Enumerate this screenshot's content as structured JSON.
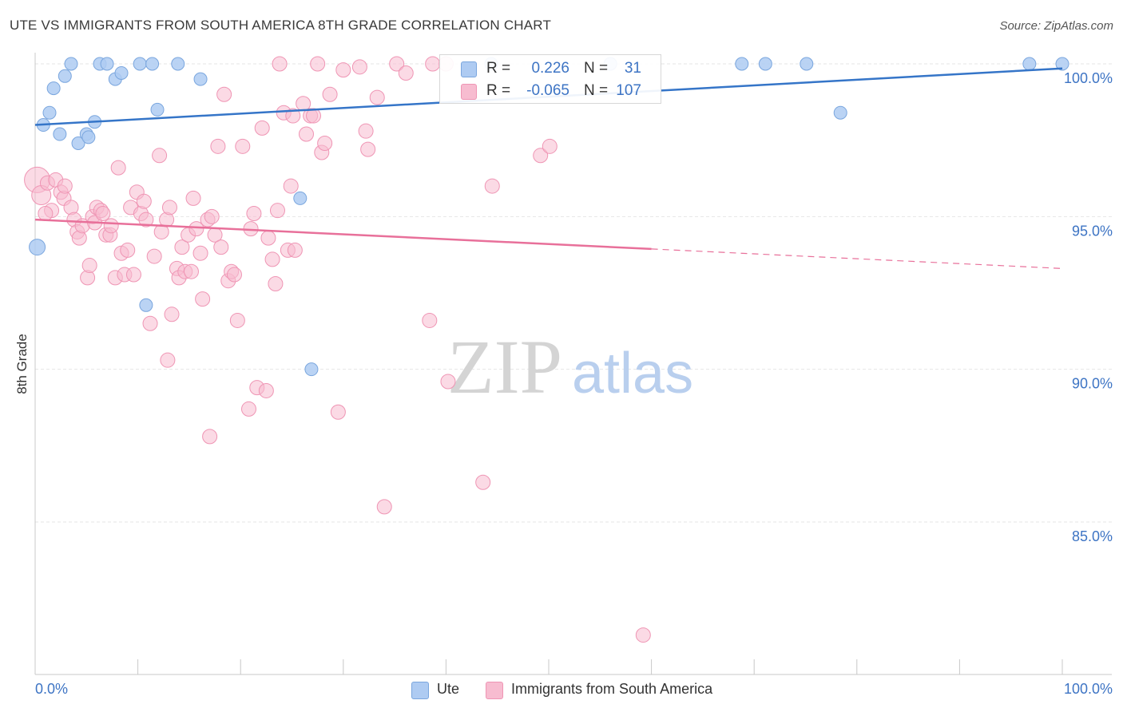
{
  "header": {
    "title": "UTE VS IMMIGRANTS FROM SOUTH AMERICA 8TH GRADE CORRELATION CHART",
    "source": "Source: ZipAtlas.com"
  },
  "watermark": {
    "zip": "ZIP",
    "atlas": "atlas"
  },
  "legend_box": {
    "rows": [
      {
        "r_label": "R =",
        "r_value": "0.226",
        "n_label": "N =",
        "n_value": "31"
      },
      {
        "r_label": "R =",
        "r_value": "-0.065",
        "n_label": "N =",
        "n_value": "107"
      }
    ]
  },
  "bottom_legend": {
    "items": [
      {
        "label": "Ute"
      },
      {
        "label": "Immigrants from South America"
      }
    ]
  },
  "colors": {
    "ute_fill": "#aecbf2",
    "ute_stroke": "#7aa6de",
    "ute_line": "#3575c8",
    "imm_fill": "#f7bcd0",
    "imm_stroke": "#ef95b4",
    "imm_line": "#e8709a",
    "axis_label_blue": "#3d74c4",
    "grid": "#e6e6e6",
    "watermark": "#d4d4d4",
    "watermark_atlas": "#b9cfee"
  },
  "chart_data": {
    "type": "scatter",
    "title": "UTE VS IMMIGRANTS FROM SOUTH AMERICA 8TH GRADE CORRELATION CHART",
    "xlabel": "",
    "ylabel": "8th Grade",
    "xlim": [
      0,
      100
    ],
    "ylim": [
      80.5,
      100.4
    ],
    "x_tick_labels": [
      "0.0%",
      "100.0%"
    ],
    "y_ticks": [
      85,
      90,
      95,
      100
    ],
    "y_tick_labels": [
      "85.0%",
      "90.0%",
      "95.0%",
      "100.0%"
    ],
    "grid": true,
    "legend_position": "top-center",
    "series": [
      {
        "name": "Ute",
        "r": 0.226,
        "n": 31,
        "trend": {
          "x0": 0,
          "y0": 98.0,
          "x1": 100,
          "y1": 99.85,
          "dashed_from": null
        },
        "points": [
          [
            0.2,
            94.0,
            10
          ],
          [
            0.8,
            98.0,
            8
          ],
          [
            1.4,
            98.4,
            8
          ],
          [
            1.8,
            99.2,
            8
          ],
          [
            2.4,
            97.7,
            8
          ],
          [
            2.9,
            99.6,
            8
          ],
          [
            3.5,
            100.0,
            8
          ],
          [
            4.2,
            97.4,
            8
          ],
          [
            5.0,
            97.7,
            8
          ],
          [
            5.2,
            97.6,
            8
          ],
          [
            5.8,
            98.1,
            8
          ],
          [
            6.3,
            100.0,
            8
          ],
          [
            7.0,
            100.0,
            8
          ],
          [
            7.8,
            99.5,
            8
          ],
          [
            8.4,
            99.7,
            8
          ],
          [
            10.2,
            100.0,
            8
          ],
          [
            11.4,
            100.0,
            8
          ],
          [
            11.9,
            98.5,
            8
          ],
          [
            13.9,
            100.0,
            8
          ],
          [
            16.1,
            99.5,
            8
          ],
          [
            10.8,
            92.1,
            8
          ],
          [
            25.8,
            95.6,
            8
          ],
          [
            26.9,
            90.0,
            8
          ],
          [
            44.4,
            100.0,
            8
          ],
          [
            56.0,
            100.0,
            8
          ],
          [
            68.8,
            100.0,
            8
          ],
          [
            71.1,
            100.0,
            8
          ],
          [
            75.1,
            100.0,
            8
          ],
          [
            78.4,
            98.4,
            8
          ],
          [
            96.8,
            100.0,
            8
          ],
          [
            100.0,
            100.0,
            8
          ]
        ]
      },
      {
        "name": "Immigrants from South America",
        "r": -0.065,
        "n": 107,
        "trend": {
          "x0": 0,
          "y0": 94.9,
          "x1": 100,
          "y1": 93.3,
          "dashed_from": 60
        },
        "points": [
          [
            0.2,
            96.2,
            16
          ],
          [
            0.6,
            95.7,
            12
          ],
          [
            1.2,
            96.1,
            9
          ],
          [
            1.6,
            95.2,
            9
          ],
          [
            1.0,
            95.1,
            9
          ],
          [
            2.0,
            96.2,
            9
          ],
          [
            2.5,
            95.8,
            9
          ],
          [
            2.8,
            95.6,
            9
          ],
          [
            2.9,
            96.0,
            9
          ],
          [
            3.5,
            95.3,
            9
          ],
          [
            3.8,
            94.9,
            9
          ],
          [
            4.1,
            94.5,
            9
          ],
          [
            4.3,
            94.3,
            9
          ],
          [
            4.6,
            94.7,
            9
          ],
          [
            5.1,
            93.0,
            9
          ],
          [
            5.3,
            93.4,
            9
          ],
          [
            5.6,
            95.0,
            9
          ],
          [
            5.8,
            94.8,
            9
          ],
          [
            6.0,
            95.3,
            9
          ],
          [
            6.4,
            95.2,
            9
          ],
          [
            6.6,
            95.1,
            9
          ],
          [
            6.9,
            94.4,
            9
          ],
          [
            7.3,
            94.4,
            9
          ],
          [
            7.4,
            94.7,
            9
          ],
          [
            7.8,
            93.0,
            9
          ],
          [
            8.1,
            96.6,
            9
          ],
          [
            8.4,
            93.8,
            9
          ],
          [
            8.7,
            93.1,
            9
          ],
          [
            9.0,
            93.9,
            9
          ],
          [
            9.3,
            95.3,
            9
          ],
          [
            9.6,
            93.1,
            9
          ],
          [
            9.9,
            95.8,
            9
          ],
          [
            10.3,
            95.1,
            9
          ],
          [
            10.8,
            94.9,
            9
          ],
          [
            10.6,
            95.5,
            9
          ],
          [
            11.2,
            91.5,
            9
          ],
          [
            11.6,
            93.7,
            9
          ],
          [
            12.1,
            97.0,
            9
          ],
          [
            12.3,
            94.5,
            9
          ],
          [
            12.8,
            94.9,
            9
          ],
          [
            12.9,
            90.3,
            9
          ],
          [
            13.1,
            95.3,
            9
          ],
          [
            13.3,
            91.8,
            9
          ],
          [
            13.8,
            93.3,
            9
          ],
          [
            14.0,
            93.0,
            9
          ],
          [
            14.3,
            94.0,
            9
          ],
          [
            14.6,
            93.2,
            9
          ],
          [
            14.9,
            94.4,
            9
          ],
          [
            15.2,
            93.2,
            9
          ],
          [
            15.4,
            95.6,
            9
          ],
          [
            15.7,
            94.6,
            9
          ],
          [
            16.1,
            93.8,
            9
          ],
          [
            16.3,
            92.3,
            9
          ],
          [
            16.8,
            94.9,
            9
          ],
          [
            17.0,
            87.8,
            9
          ],
          [
            17.2,
            95.0,
            9
          ],
          [
            17.5,
            94.4,
            9
          ],
          [
            17.8,
            97.3,
            9
          ],
          [
            18.1,
            94.0,
            9
          ],
          [
            18.4,
            99.0,
            9
          ],
          [
            18.8,
            92.9,
            9
          ],
          [
            19.1,
            93.2,
            9
          ],
          [
            19.4,
            93.1,
            9
          ],
          [
            19.7,
            91.6,
            9
          ],
          [
            20.2,
            97.3,
            9
          ],
          [
            20.8,
            88.7,
            9
          ],
          [
            21.0,
            94.6,
            9
          ],
          [
            21.3,
            95.1,
            9
          ],
          [
            21.6,
            89.4,
            9
          ],
          [
            22.1,
            97.9,
            9
          ],
          [
            22.5,
            89.3,
            9
          ],
          [
            22.7,
            94.3,
            9
          ],
          [
            23.1,
            93.6,
            9
          ],
          [
            23.4,
            92.8,
            9
          ],
          [
            23.8,
            100.0,
            9
          ],
          [
            23.6,
            95.2,
            9
          ],
          [
            24.2,
            98.4,
            9
          ],
          [
            24.6,
            93.9,
            9
          ],
          [
            24.9,
            96.0,
            9
          ],
          [
            25.3,
            93.9,
            9
          ],
          [
            25.1,
            98.3,
            9
          ],
          [
            26.1,
            98.7,
            9
          ],
          [
            26.4,
            97.7,
            9
          ],
          [
            26.8,
            98.3,
            9
          ],
          [
            27.1,
            98.3,
            9
          ],
          [
            27.5,
            100.0,
            9
          ],
          [
            27.9,
            97.1,
            9
          ],
          [
            28.2,
            97.4,
            9
          ],
          [
            28.7,
            99.0,
            9
          ],
          [
            29.5,
            88.6,
            9
          ],
          [
            30.0,
            99.8,
            9
          ],
          [
            31.6,
            99.9,
            9
          ],
          [
            32.4,
            97.2,
            9
          ],
          [
            32.2,
            97.8,
            9
          ],
          [
            33.3,
            98.9,
            9
          ],
          [
            34.0,
            85.5,
            9
          ],
          [
            35.2,
            100.0,
            9
          ],
          [
            36.1,
            99.7,
            9
          ],
          [
            38.4,
            91.6,
            9
          ],
          [
            40.0,
            100.0,
            9
          ],
          [
            40.2,
            89.6,
            9
          ],
          [
            43.6,
            86.3,
            9
          ],
          [
            44.5,
            96.0,
            9
          ],
          [
            49.2,
            97.0,
            9
          ],
          [
            50.1,
            97.3,
            9
          ],
          [
            59.2,
            81.3,
            9
          ],
          [
            38.7,
            100.0,
            9
          ]
        ]
      }
    ]
  }
}
